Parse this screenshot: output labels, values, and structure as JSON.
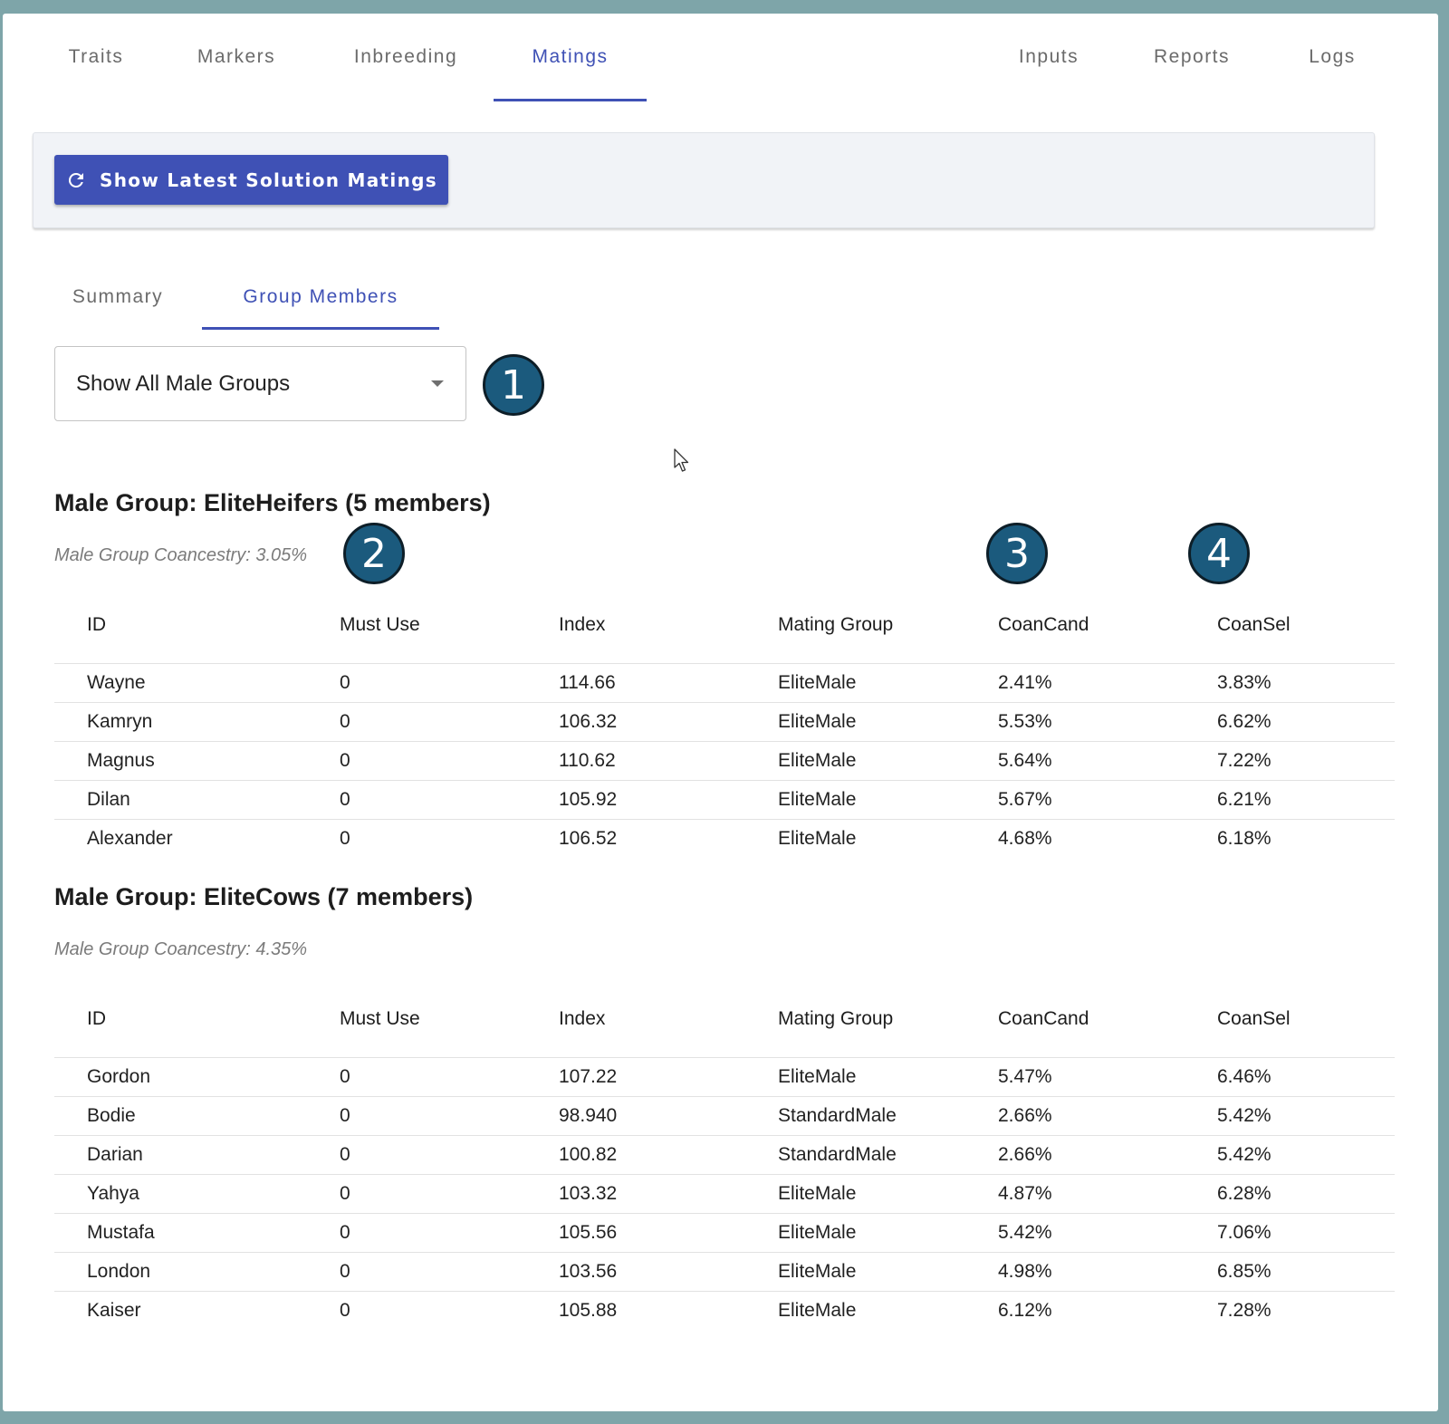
{
  "top_tabs": {
    "traits": "Traits",
    "markers": "Markers",
    "inbreeding": "Inbreeding",
    "matings": "Matings",
    "inputs": "Inputs",
    "reports": "Reports",
    "logs": "Logs"
  },
  "toolbar": {
    "show_latest_label": "Show Latest Solution Matings"
  },
  "sub_tabs": {
    "summary": "Summary",
    "group_members": "Group Members"
  },
  "group_select": {
    "value": "Show All Male Groups"
  },
  "badges": [
    "1",
    "2",
    "3",
    "4"
  ],
  "columns": [
    "ID",
    "Must Use",
    "Index",
    "Mating Group",
    "CoanCand",
    "CoanSel"
  ],
  "groups": [
    {
      "title": "Male Group: EliteHeifers (5 members)",
      "coancestry": "Male Group Coancestry: 3.05%",
      "rows": [
        [
          "Wayne",
          "0",
          "114.66",
          "EliteMale",
          "2.41%",
          "3.83%"
        ],
        [
          "Kamryn",
          "0",
          "106.32",
          "EliteMale",
          "5.53%",
          "6.62%"
        ],
        [
          "Magnus",
          "0",
          "110.62",
          "EliteMale",
          "5.64%",
          "7.22%"
        ],
        [
          "Dilan",
          "0",
          "105.92",
          "EliteMale",
          "5.67%",
          "6.21%"
        ],
        [
          "Alexander",
          "0",
          "106.52",
          "EliteMale",
          "4.68%",
          "6.18%"
        ]
      ]
    },
    {
      "title": "Male Group: EliteCows (7 members)",
      "coancestry": "Male Group Coancestry: 4.35%",
      "rows": [
        [
          "Gordon",
          "0",
          "107.22",
          "EliteMale",
          "5.47%",
          "6.46%"
        ],
        [
          "Bodie",
          "0",
          "98.940",
          "StandardMale",
          "2.66%",
          "5.42%"
        ],
        [
          "Darian",
          "0",
          "100.82",
          "StandardMale",
          "2.66%",
          "5.42%"
        ],
        [
          "Yahya",
          "0",
          "103.32",
          "EliteMale",
          "4.87%",
          "6.28%"
        ],
        [
          "Mustafa",
          "0",
          "105.56",
          "EliteMale",
          "5.42%",
          "7.06%"
        ],
        [
          "London",
          "0",
          "103.56",
          "EliteMale",
          "4.98%",
          "6.85%"
        ],
        [
          "Kaiser",
          "0",
          "105.88",
          "EliteMale",
          "6.12%",
          "7.28%"
        ]
      ]
    }
  ],
  "colors": {
    "accent": "#3f51b5",
    "badge": "#1b5a7d",
    "backdrop": "#7ea5a9"
  }
}
